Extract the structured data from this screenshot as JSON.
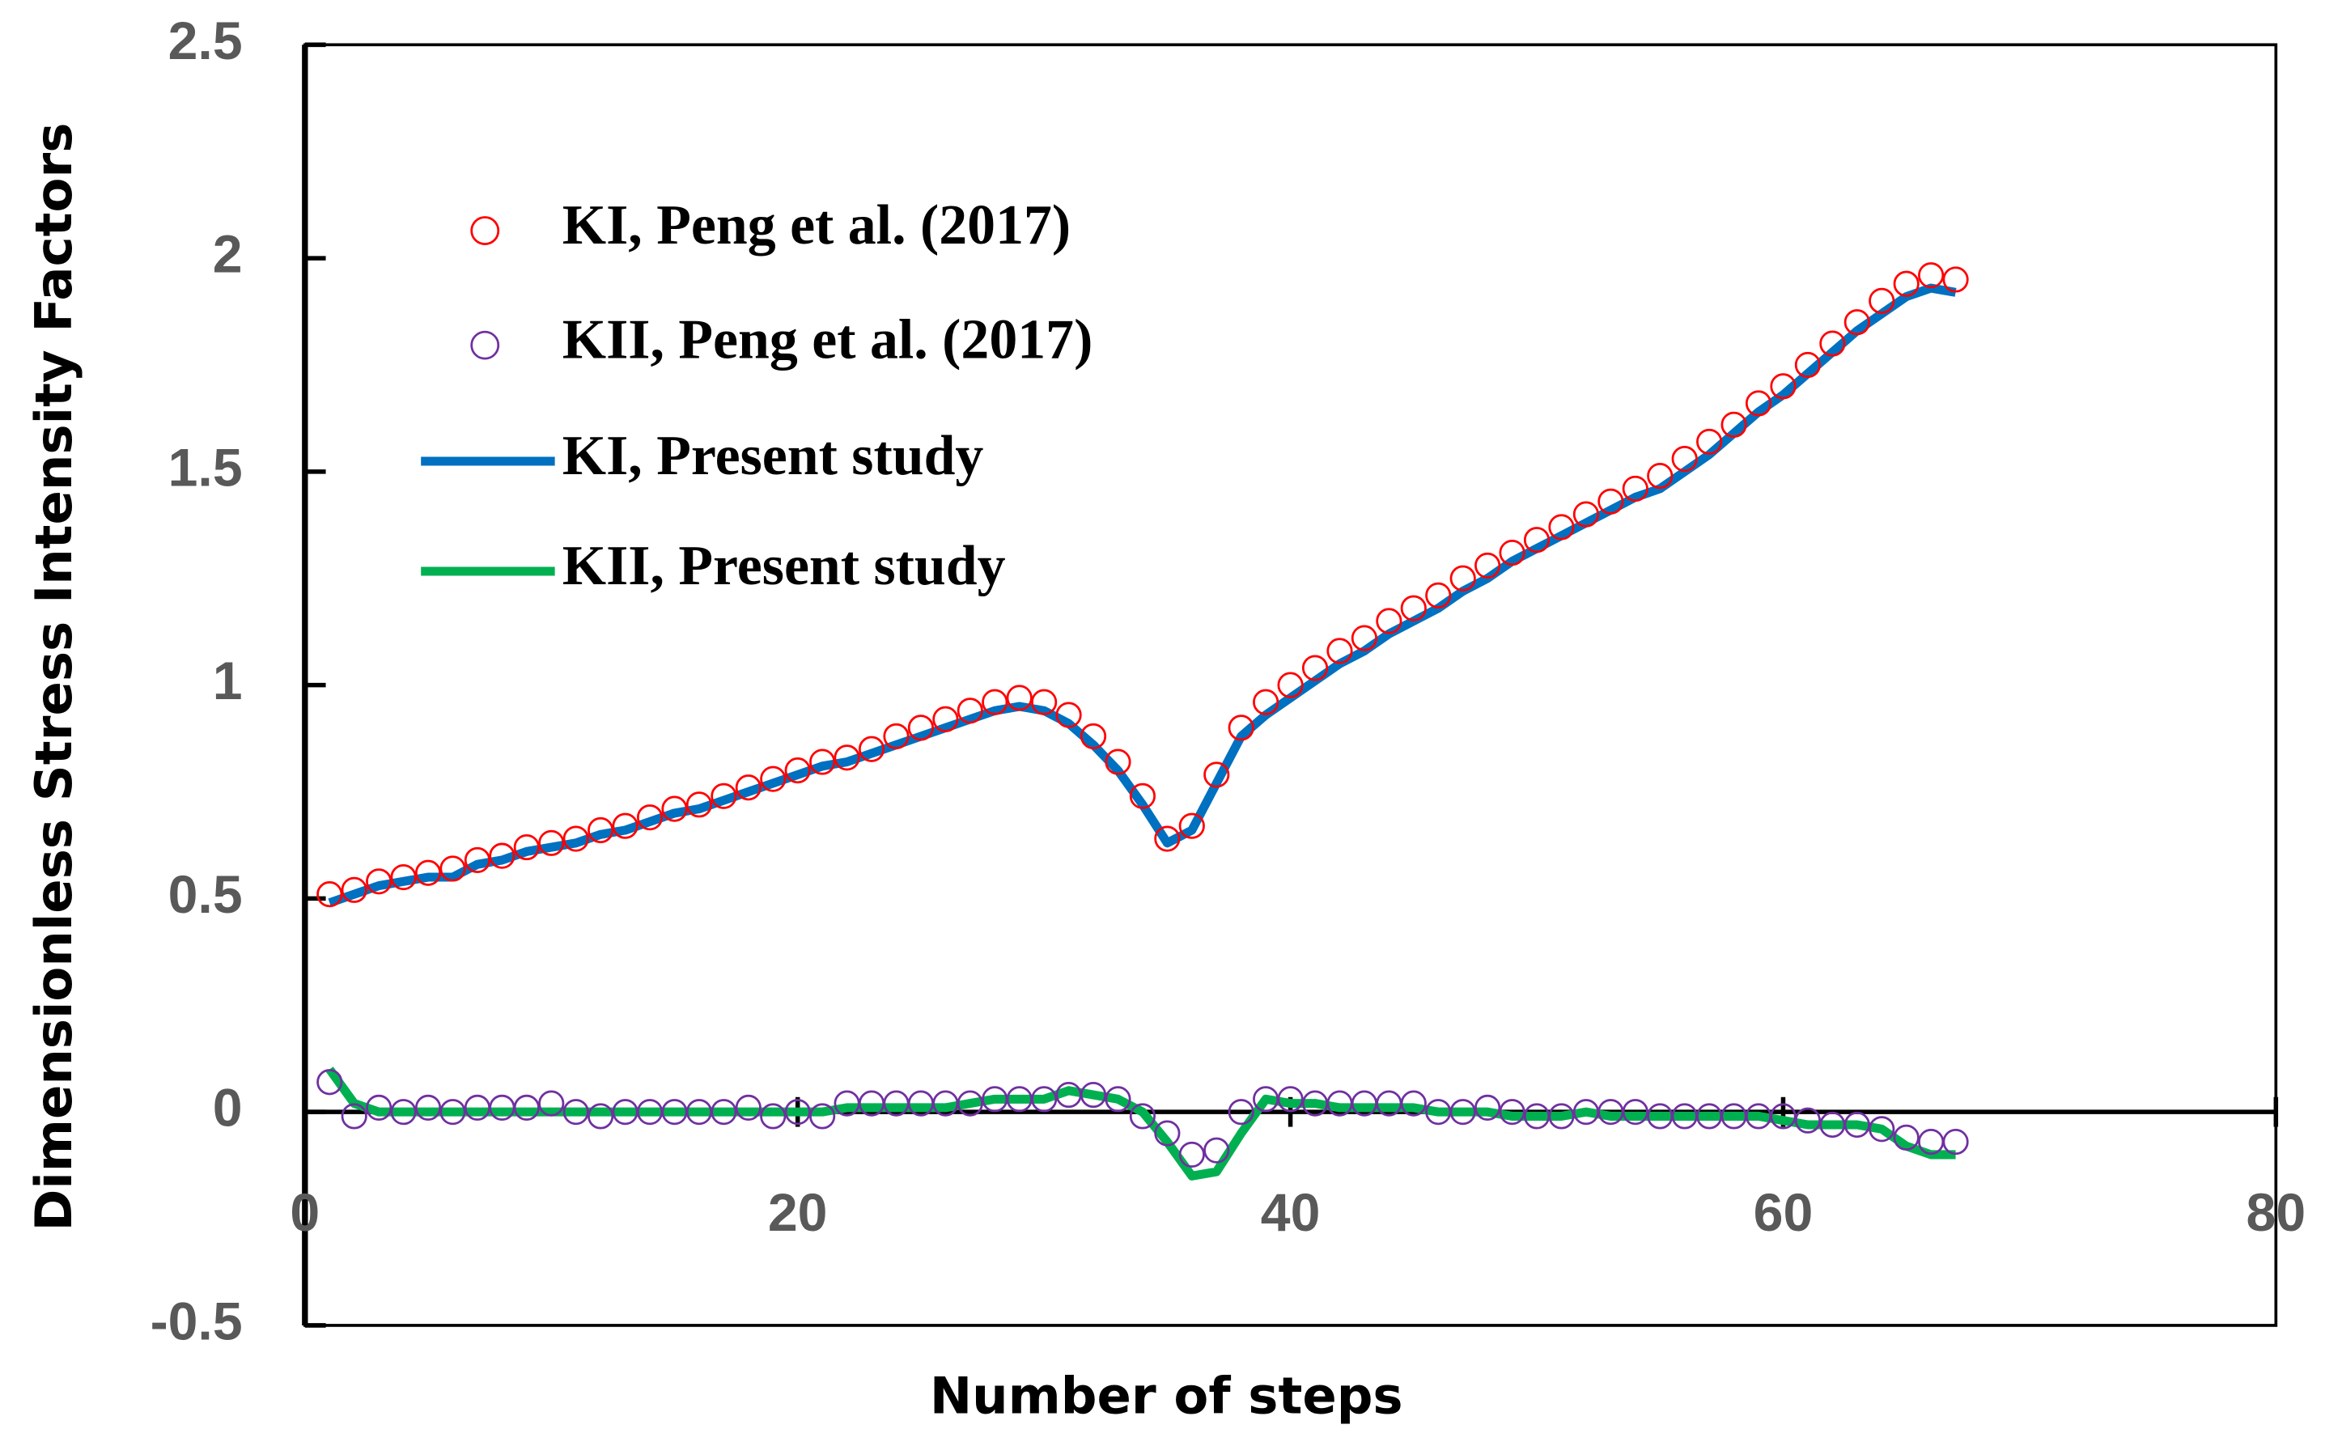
{
  "chart_data": {
    "type": "line",
    "x_label": "Number of steps",
    "y_label": "Dimensionless Stress Intensity Factors",
    "x": [
      1,
      2,
      3,
      4,
      5,
      6,
      7,
      8,
      9,
      10,
      11,
      12,
      13,
      14,
      15,
      16,
      17,
      18,
      19,
      20,
      21,
      22,
      23,
      24,
      25,
      26,
      27,
      28,
      29,
      30,
      31,
      32,
      33,
      34,
      35,
      36,
      37,
      38,
      39,
      40,
      41,
      42,
      43,
      44,
      45,
      46,
      47,
      48,
      49,
      50,
      51,
      52,
      53,
      54,
      55,
      56,
      57,
      58,
      59,
      60,
      61,
      62,
      63,
      64,
      65,
      66,
      67
    ],
    "series": [
      {
        "name": "KI, Peng et al. (2017)",
        "color": "#ff0000",
        "style": "marker",
        "values": [
          0.51,
          0.52,
          0.54,
          0.55,
          0.56,
          0.57,
          0.59,
          0.6,
          0.62,
          0.63,
          0.64,
          0.66,
          0.67,
          0.69,
          0.71,
          0.72,
          0.74,
          0.76,
          0.78,
          0.8,
          0.82,
          0.83,
          0.85,
          0.88,
          0.9,
          0.92,
          0.94,
          0.96,
          0.97,
          0.96,
          0.93,
          0.88,
          0.82,
          0.74,
          0.64,
          0.67,
          0.79,
          0.9,
          0.96,
          1.0,
          1.04,
          1.08,
          1.11,
          1.15,
          1.18,
          1.21,
          1.25,
          1.28,
          1.31,
          1.34,
          1.37,
          1.4,
          1.43,
          1.46,
          1.49,
          1.53,
          1.57,
          1.61,
          1.66,
          1.7,
          1.75,
          1.8,
          1.85,
          1.9,
          1.94,
          1.96,
          1.95
        ]
      },
      {
        "name": "KII, Peng et al. (2017)",
        "color": "#7030a0",
        "style": "marker",
        "values": [
          0.07,
          -0.01,
          0.01,
          0.0,
          0.01,
          0.0,
          0.01,
          0.01,
          0.01,
          0.02,
          0.0,
          -0.01,
          0.0,
          0.0,
          0.0,
          0.0,
          0.0,
          0.01,
          -0.01,
          0.0,
          -0.01,
          0.02,
          0.02,
          0.02,
          0.02,
          0.02,
          0.02,
          0.03,
          0.03,
          0.03,
          0.04,
          0.04,
          0.03,
          -0.01,
          -0.05,
          -0.1,
          -0.09,
          0.0,
          0.03,
          0.03,
          0.02,
          0.02,
          0.02,
          0.02,
          0.02,
          0.0,
          0.0,
          0.01,
          0.0,
          -0.01,
          -0.01,
          0.0,
          0.0,
          0.0,
          -0.01,
          -0.01,
          -0.01,
          -0.01,
          -0.01,
          -0.01,
          -0.02,
          -0.03,
          -0.03,
          -0.04,
          -0.06,
          -0.07,
          -0.07
        ]
      },
      {
        "name": "KI, Present study",
        "color": "#0070c0",
        "style": "line",
        "values": [
          0.49,
          0.51,
          0.53,
          0.54,
          0.55,
          0.55,
          0.58,
          0.59,
          0.61,
          0.62,
          0.63,
          0.65,
          0.66,
          0.68,
          0.7,
          0.71,
          0.73,
          0.75,
          0.77,
          0.79,
          0.81,
          0.82,
          0.84,
          0.86,
          0.88,
          0.9,
          0.92,
          0.94,
          0.95,
          0.94,
          0.91,
          0.86,
          0.8,
          0.72,
          0.63,
          0.66,
          0.77,
          0.88,
          0.93,
          0.97,
          1.01,
          1.05,
          1.08,
          1.12,
          1.15,
          1.18,
          1.22,
          1.25,
          1.29,
          1.32,
          1.35,
          1.38,
          1.41,
          1.44,
          1.46,
          1.5,
          1.54,
          1.59,
          1.64,
          1.68,
          1.73,
          1.78,
          1.83,
          1.87,
          1.91,
          1.93,
          1.92
        ]
      },
      {
        "name": "KII, Present study",
        "color": "#00b050",
        "style": "line",
        "values": [
          0.1,
          0.02,
          0.0,
          0.0,
          0.0,
          0.0,
          0.0,
          0.0,
          0.0,
          0.0,
          0.0,
          0.0,
          0.0,
          0.0,
          0.0,
          0.0,
          0.0,
          0.0,
          0.0,
          0.0,
          0.0,
          0.01,
          0.01,
          0.01,
          0.01,
          0.01,
          0.02,
          0.03,
          0.03,
          0.03,
          0.05,
          0.04,
          0.03,
          0.0,
          -0.07,
          -0.15,
          -0.14,
          -0.05,
          0.03,
          0.02,
          0.02,
          0.01,
          0.01,
          0.01,
          0.01,
          0.0,
          0.0,
          0.0,
          -0.01,
          -0.01,
          -0.01,
          0.0,
          -0.01,
          -0.01,
          -0.01,
          -0.01,
          -0.01,
          -0.01,
          -0.01,
          -0.02,
          -0.03,
          -0.03,
          -0.03,
          -0.04,
          -0.08,
          -0.1,
          -0.1
        ]
      }
    ],
    "xlim": [
      0,
      80
    ],
    "xticks": [
      0,
      20,
      40,
      60,
      80
    ],
    "ylim": [
      -0.5,
      2.5
    ],
    "yticks": [
      -0.5,
      0,
      0.5,
      1,
      1.5,
      2,
      2.5
    ]
  }
}
